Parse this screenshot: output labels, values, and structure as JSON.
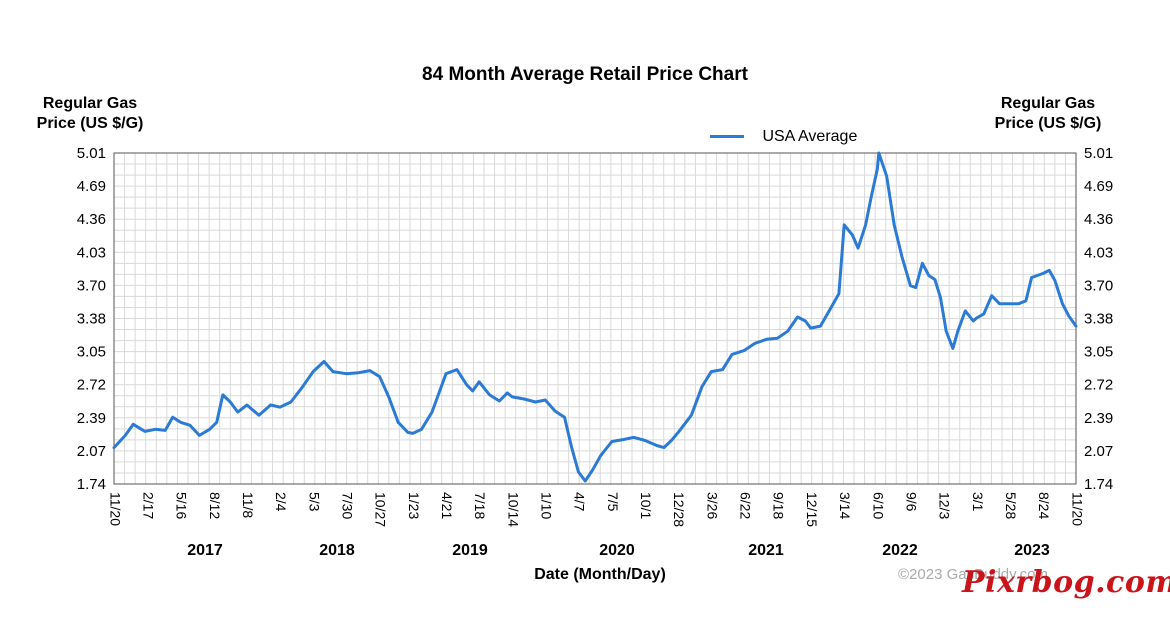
{
  "page": {
    "title": "84 Month Average Retail Price Chart",
    "y_axis_title_left": [
      "Regular Gas",
      "Price (US $/G)"
    ],
    "y_axis_title_right": [
      "Regular Gas",
      "Price (US $/G)"
    ],
    "x_axis_title": "Date (Month/Day)",
    "credit": "©2023 GasBuddy.com",
    "watermark": "Pixrbog.com"
  },
  "chart_data": {
    "type": "line",
    "title": "84 Month Average Retail Price Chart",
    "xlabel": "Date (Month/Day)",
    "ylabel": "Regular Gas Price (US $/G)",
    "ylim": [
      1.74,
      5.01
    ],
    "y_ticks": [
      "5.01",
      "4.69",
      "4.36",
      "4.03",
      "3.70",
      "3.38",
      "3.05",
      "2.72",
      "2.39",
      "2.07",
      "1.74"
    ],
    "x_tick_labels": [
      "11/20",
      "2/17",
      "5/16",
      "8/12",
      "11/8",
      "2/4",
      "5/3",
      "7/30",
      "10/27",
      "1/23",
      "4/21",
      "7/18",
      "10/14",
      "1/10",
      "4/7",
      "7/5",
      "10/1",
      "12/28",
      "3/26",
      "6/22",
      "9/18",
      "12/15",
      "3/14",
      "6/10",
      "9/6",
      "12/3",
      "3/1",
      "5/28",
      "8/24",
      "11/20"
    ],
    "x_range": [
      "2016-11-20",
      "2023-11-20"
    ],
    "year_labels": [
      "2017",
      "2018",
      "2019",
      "2020",
      "2021",
      "2022",
      "2023"
    ],
    "grid": true,
    "legend": {
      "position": "top-right",
      "entries": [
        "USA Average"
      ]
    },
    "series": [
      {
        "name": "USA Average",
        "color": "#2b7bd4",
        "points": [
          [
            "2016-11-20",
            2.1
          ],
          [
            "2016-12-20",
            2.22
          ],
          [
            "2017-01-10",
            2.33
          ],
          [
            "2017-02-10",
            2.26
          ],
          [
            "2017-03-10",
            2.28
          ],
          [
            "2017-04-05",
            2.27
          ],
          [
            "2017-04-25",
            2.4
          ],
          [
            "2017-05-16",
            2.35
          ],
          [
            "2017-06-10",
            2.32
          ],
          [
            "2017-07-05",
            2.22
          ],
          [
            "2017-08-01",
            2.28
          ],
          [
            "2017-08-20",
            2.35
          ],
          [
            "2017-09-05",
            2.62
          ],
          [
            "2017-09-25",
            2.55
          ],
          [
            "2017-10-15",
            2.45
          ],
          [
            "2017-11-08",
            2.52
          ],
          [
            "2017-12-10",
            2.42
          ],
          [
            "2018-01-10",
            2.52
          ],
          [
            "2018-02-04",
            2.5
          ],
          [
            "2018-03-05",
            2.55
          ],
          [
            "2018-04-05",
            2.7
          ],
          [
            "2018-05-03",
            2.85
          ],
          [
            "2018-06-01",
            2.95
          ],
          [
            "2018-06-25",
            2.85
          ],
          [
            "2018-07-30",
            2.83
          ],
          [
            "2018-09-01",
            2.84
          ],
          [
            "2018-10-01",
            2.86
          ],
          [
            "2018-10-27",
            2.8
          ],
          [
            "2018-11-20",
            2.6
          ],
          [
            "2018-12-15",
            2.35
          ],
          [
            "2019-01-10",
            2.25
          ],
          [
            "2019-01-23",
            2.24
          ],
          [
            "2019-02-15",
            2.28
          ],
          [
            "2019-03-15",
            2.45
          ],
          [
            "2019-04-21",
            2.83
          ],
          [
            "2019-05-20",
            2.87
          ],
          [
            "2019-06-15",
            2.72
          ],
          [
            "2019-07-01",
            2.66
          ],
          [
            "2019-07-18",
            2.75
          ],
          [
            "2019-08-15",
            2.62
          ],
          [
            "2019-09-10",
            2.56
          ],
          [
            "2019-10-01",
            2.64
          ],
          [
            "2019-10-14",
            2.6
          ],
          [
            "2019-11-15",
            2.58
          ],
          [
            "2019-12-15",
            2.55
          ],
          [
            "2020-01-10",
            2.57
          ],
          [
            "2020-02-05",
            2.46
          ],
          [
            "2020-03-01",
            2.4
          ],
          [
            "2020-03-20",
            2.1
          ],
          [
            "2020-04-07",
            1.86
          ],
          [
            "2020-04-25",
            1.77
          ],
          [
            "2020-05-15",
            1.88
          ],
          [
            "2020-06-05",
            2.02
          ],
          [
            "2020-07-05",
            2.16
          ],
          [
            "2020-08-05",
            2.18
          ],
          [
            "2020-09-01",
            2.2
          ],
          [
            "2020-10-01",
            2.17
          ],
          [
            "2020-11-01",
            2.12
          ],
          [
            "2020-11-20",
            2.1
          ],
          [
            "2020-12-10",
            2.17
          ],
          [
            "2020-12-28",
            2.25
          ],
          [
            "2021-02-01",
            2.42
          ],
          [
            "2021-03-01",
            2.7
          ],
          [
            "2021-03-26",
            2.85
          ],
          [
            "2021-04-25",
            2.87
          ],
          [
            "2021-05-20",
            3.02
          ],
          [
            "2021-06-22",
            3.06
          ],
          [
            "2021-07-20",
            3.13
          ],
          [
            "2021-08-20",
            3.17
          ],
          [
            "2021-09-18",
            3.18
          ],
          [
            "2021-10-15",
            3.25
          ],
          [
            "2021-11-10",
            3.39
          ],
          [
            "2021-12-01",
            3.35
          ],
          [
            "2021-12-15",
            3.28
          ],
          [
            "2022-01-10",
            3.3
          ],
          [
            "2022-02-10",
            3.5
          ],
          [
            "2022-02-28",
            3.62
          ],
          [
            "2022-03-14",
            4.3
          ],
          [
            "2022-04-05",
            4.2
          ],
          [
            "2022-04-20",
            4.07
          ],
          [
            "2022-05-10",
            4.3
          ],
          [
            "2022-05-25",
            4.58
          ],
          [
            "2022-06-10",
            4.85
          ],
          [
            "2022-06-14",
            5.01
          ],
          [
            "2022-07-05",
            4.78
          ],
          [
            "2022-07-25",
            4.3
          ],
          [
            "2022-08-15",
            3.98
          ],
          [
            "2022-09-06",
            3.7
          ],
          [
            "2022-09-20",
            3.68
          ],
          [
            "2022-10-08",
            3.92
          ],
          [
            "2022-10-25",
            3.8
          ],
          [
            "2022-11-10",
            3.76
          ],
          [
            "2022-11-25",
            3.58
          ],
          [
            "2022-12-10",
            3.25
          ],
          [
            "2022-12-28",
            3.08
          ],
          [
            "2023-01-10",
            3.25
          ],
          [
            "2023-01-30",
            3.45
          ],
          [
            "2023-02-20",
            3.35
          ],
          [
            "2023-03-01",
            3.38
          ],
          [
            "2023-03-20",
            3.42
          ],
          [
            "2023-04-10",
            3.6
          ],
          [
            "2023-05-01",
            3.52
          ],
          [
            "2023-05-28",
            3.52
          ],
          [
            "2023-06-20",
            3.52
          ],
          [
            "2023-07-10",
            3.55
          ],
          [
            "2023-07-25",
            3.78
          ],
          [
            "2023-08-24",
            3.82
          ],
          [
            "2023-09-10",
            3.85
          ],
          [
            "2023-09-25",
            3.75
          ],
          [
            "2023-10-15",
            3.52
          ],
          [
            "2023-11-01",
            3.4
          ],
          [
            "2023-11-20",
            3.3
          ]
        ]
      }
    ]
  }
}
